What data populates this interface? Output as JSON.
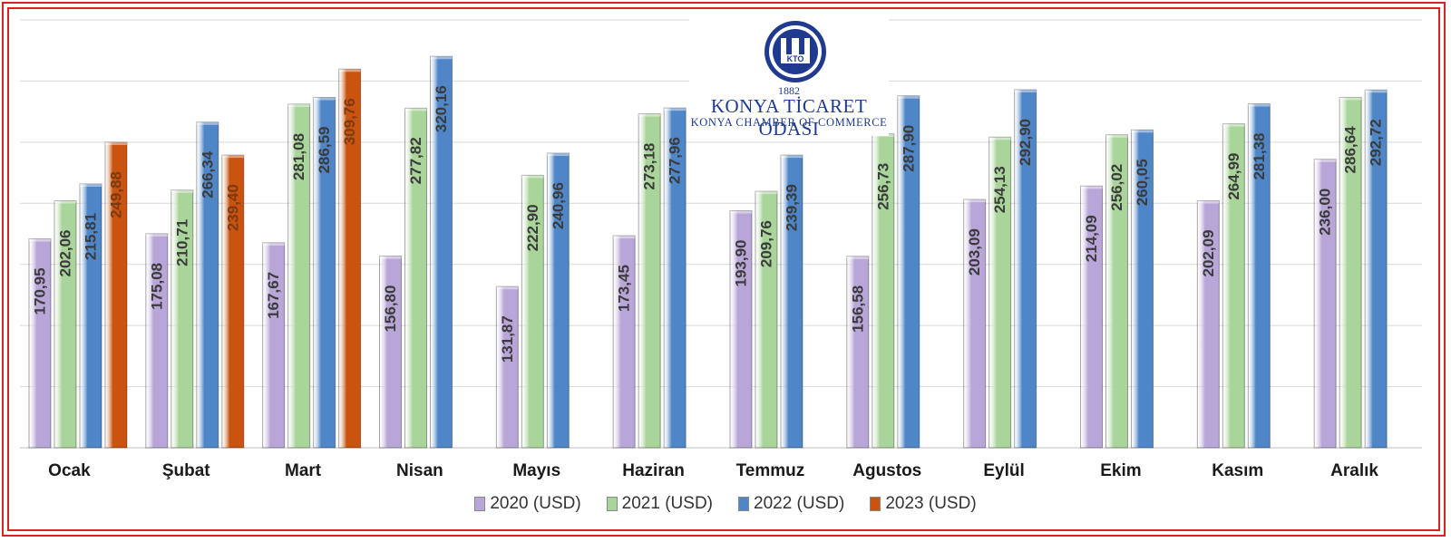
{
  "logo": {
    "year": "1882",
    "name_tr": "KONYA TİCARET ODASI",
    "name_en": "KONYA CHAMBER OF COMMERCE",
    "emblem_text": "KTO"
  },
  "chart_data": {
    "type": "bar",
    "categories": [
      "Ocak",
      "Şubat",
      "Mart",
      "Nisan",
      "Mayıs",
      "Haziran",
      "Temmuz",
      "Agustos",
      "Eylül",
      "Ekim",
      "Kasım",
      "Aralık"
    ],
    "series": [
      {
        "name": "2020 (USD)",
        "color": "#b9a6d8",
        "values": [
          170.95,
          175.08,
          167.67,
          156.8,
          131.87,
          173.45,
          193.9,
          156.58,
          203.09,
          214.09,
          202.09,
          236.0
        ]
      },
      {
        "name": "2021 (USD)",
        "color": "#a9d49a",
        "values": [
          202.06,
          210.71,
          281.08,
          277.82,
          222.9,
          273.18,
          209.76,
          256.73,
          254.13,
          256.02,
          264.99,
          286.64
        ]
      },
      {
        "name": "2022 (USD)",
        "color": "#4e86c8",
        "values": [
          215.81,
          266.34,
          286.59,
          320.16,
          240.96,
          277.96,
          239.39,
          287.9,
          292.9,
          260.05,
          281.38,
          292.72
        ]
      },
      {
        "name": "2023 (USD)",
        "color": "#c9530f",
        "values": [
          249.88,
          239.4,
          309.76,
          null,
          null,
          null,
          null,
          null,
          null,
          null,
          null,
          null
        ]
      }
    ],
    "labels": [
      [
        "170,95",
        "175,08",
        "167,67",
        "156,80",
        "131,87",
        "173,45",
        "193,90",
        "156,58",
        "203,09",
        "214,09",
        "202,09",
        "236,00"
      ],
      [
        "202,06",
        "210,71",
        "281,08",
        "277,82",
        "222,90",
        "273,18",
        "209,76",
        "256,73",
        "254,13",
        "256,02",
        "264,99",
        "286,64"
      ],
      [
        "215,81",
        "266,34",
        "286,59",
        "320,16",
        "240,96",
        "277,96",
        "239,39",
        "287,90",
        "292,90",
        "260,05",
        "281,38",
        "292,72"
      ],
      [
        "249,88",
        "239,40",
        "309,76",
        null,
        null,
        null,
        null,
        null,
        null,
        null,
        null,
        null
      ]
    ],
    "ylim": [
      0,
      350
    ],
    "grid": true,
    "legend_position": "bottom"
  }
}
